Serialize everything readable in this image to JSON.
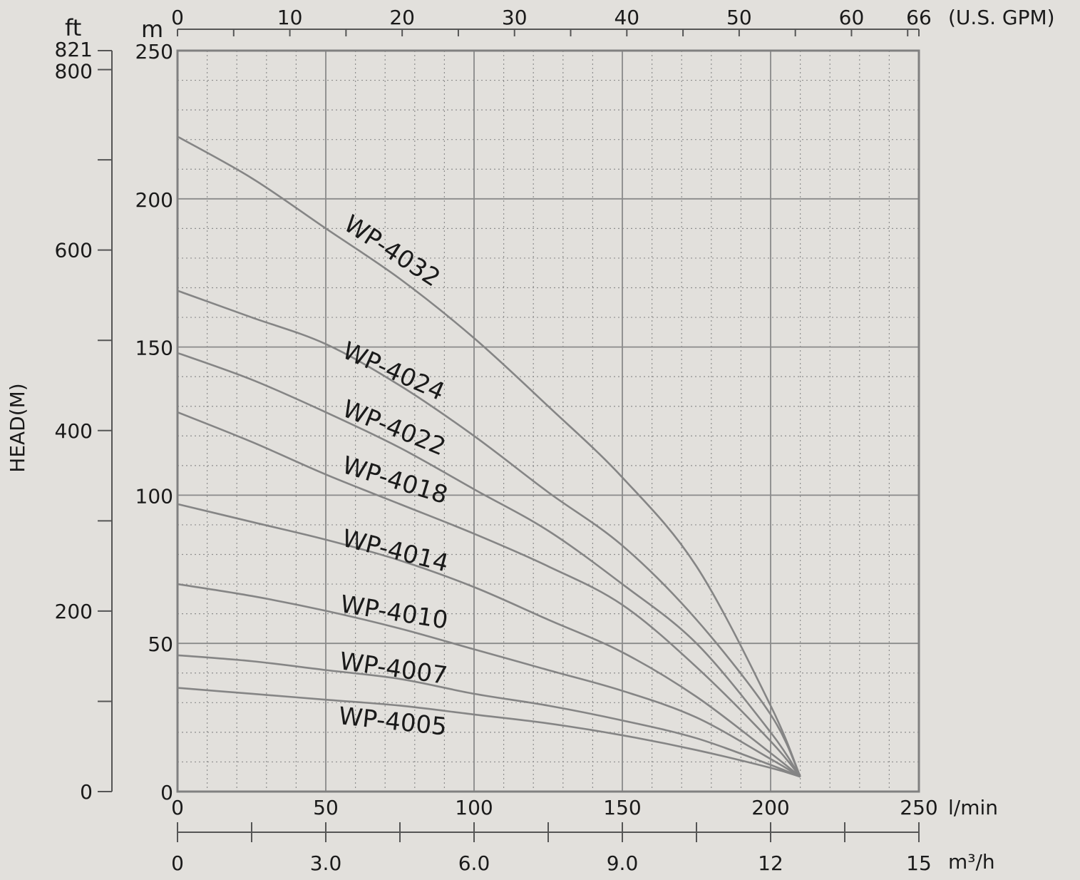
{
  "chart_data": {
    "type": "line",
    "title": "",
    "ylabel": "HEAD(M)",
    "units": {
      "ft": "ft",
      "m": "m",
      "gpm": "(U.S. GPM)",
      "lmin": "l/min",
      "m3h": "m³/h"
    },
    "xlim": [
      0,
      250
    ],
    "ylim": [
      0,
      250
    ],
    "x_ticks_lmin": [
      "0",
      "50",
      "100",
      "150",
      "200",
      "250"
    ],
    "x_ticks_m3h": [
      "0",
      "3.0",
      "6.0",
      "9.0",
      "12",
      "15"
    ],
    "x_ticks_gpm": [
      "0",
      "10",
      "20",
      "30",
      "40",
      "50",
      "60",
      "66"
    ],
    "y_ticks_m": [
      "0",
      "50",
      "100",
      "150",
      "200",
      "250"
    ],
    "y_ticks_ft": [
      "0",
      "200",
      "400",
      "600",
      "800",
      "821"
    ],
    "grid": true,
    "series": [
      {
        "name": "WP-4032",
        "x": [
          0,
          25,
          50,
          75,
          100,
          125,
          150,
          175,
          200,
          210
        ],
        "y": [
          221,
          207,
          190,
          173,
          153,
          130,
          106,
          76,
          29,
          5
        ]
      },
      {
        "name": "WP-4024",
        "x": [
          0,
          25,
          50,
          75,
          100,
          125,
          150,
          175,
          200,
          210
        ],
        "y": [
          169,
          160,
          151,
          137,
          120,
          101,
          83,
          58,
          26,
          5
        ]
      },
      {
        "name": "WP-4022",
        "x": [
          0,
          25,
          50,
          75,
          100,
          125,
          150,
          175,
          200,
          210
        ],
        "y": [
          148,
          139,
          128,
          116,
          102,
          88,
          70,
          50,
          20,
          5
        ]
      },
      {
        "name": "WP-4018",
        "x": [
          0,
          25,
          50,
          75,
          100,
          125,
          150,
          175,
          200,
          210
        ],
        "y": [
          128,
          118,
          107,
          97,
          87,
          76,
          63,
          42,
          17,
          5
        ]
      },
      {
        "name": "WP-4014",
        "x": [
          0,
          25,
          50,
          75,
          100,
          125,
          150,
          175,
          200,
          210
        ],
        "y": [
          97,
          91,
          85,
          78,
          69,
          58,
          47,
          32,
          13,
          5
        ]
      },
      {
        "name": "WP-4010",
        "x": [
          0,
          25,
          50,
          75,
          100,
          125,
          150,
          175,
          200,
          210
        ],
        "y": [
          70,
          66,
          61,
          55,
          48,
          41,
          34,
          25,
          11,
          5
        ]
      },
      {
        "name": "WP-4007",
        "x": [
          0,
          25,
          50,
          75,
          100,
          125,
          150,
          175,
          200,
          210
        ],
        "y": [
          46,
          44,
          41,
          38,
          33,
          29,
          24,
          18,
          9,
          5
        ]
      },
      {
        "name": "WP-4005",
        "x": [
          0,
          25,
          50,
          75,
          100,
          125,
          150,
          175,
          200,
          210
        ],
        "y": [
          35,
          33,
          31,
          29,
          26,
          23,
          19,
          14,
          8,
          5
        ]
      }
    ]
  }
}
